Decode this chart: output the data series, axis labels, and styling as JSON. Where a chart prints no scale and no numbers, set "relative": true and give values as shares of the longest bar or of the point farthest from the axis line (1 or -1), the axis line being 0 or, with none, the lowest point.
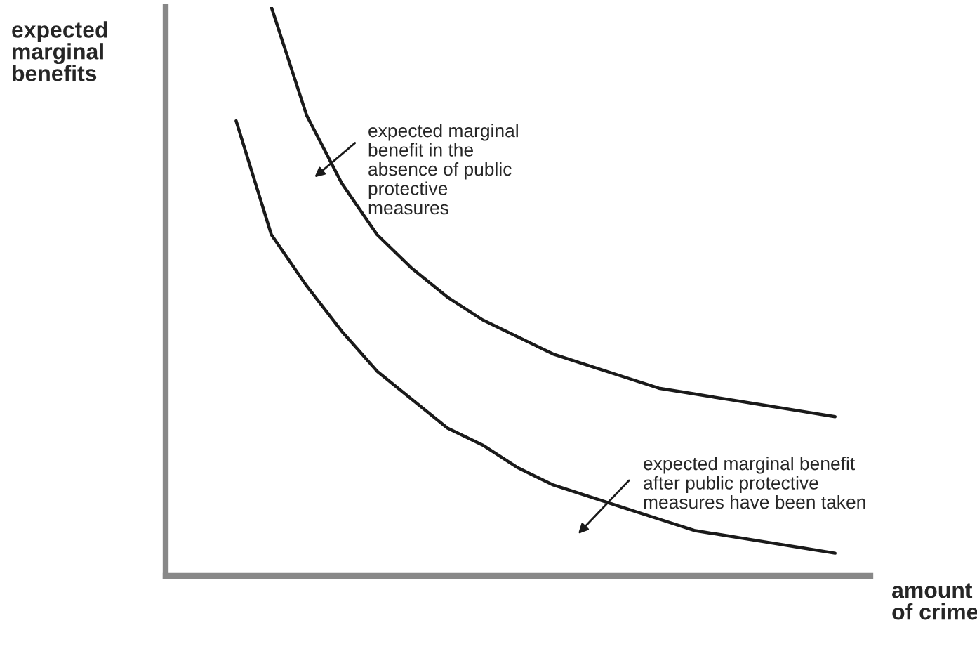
{
  "chart_data": {
    "type": "line",
    "relative": true,
    "xlabel": "amount\nof crime",
    "ylabel": "expected\nmarginal\nbenefits",
    "categories": [
      null,
      null,
      null,
      null,
      null,
      null,
      null,
      null,
      null,
      null,
      null,
      null,
      null,
      null,
      null,
      null,
      null,
      null,
      null,
      null,
      null
    ],
    "series": [
      {
        "color": "#1a1a1a",
        "values": [
          null,
          null,
          null,
          1.0,
          0.81,
          0.69,
          0.6,
          0.54,
          0.49,
          0.45,
          0.42,
          0.39,
          0.37,
          0.35,
          0.33,
          0.32,
          0.31,
          0.3,
          0.29,
          0.28,
          null
        ]
      },
      {
        "color": "#1a1a1a",
        "values": [
          null,
          null,
          0.8,
          0.6,
          0.51,
          0.43,
          0.36,
          0.31,
          0.26,
          0.23,
          0.19,
          0.16,
          0.14,
          0.12,
          0.1,
          0.08,
          0.07,
          0.06,
          0.05,
          0.04,
          null
        ]
      }
    ],
    "annotations": [
      "expected marginal\nbenefit in the\nabsence of public\nprotective\nmeasures",
      "expected marginal benefit\nafter public protective\nmeasures have been taken"
    ],
    "grid": false,
    "legend": false,
    "marker": "none",
    "line_style": "solid"
  }
}
